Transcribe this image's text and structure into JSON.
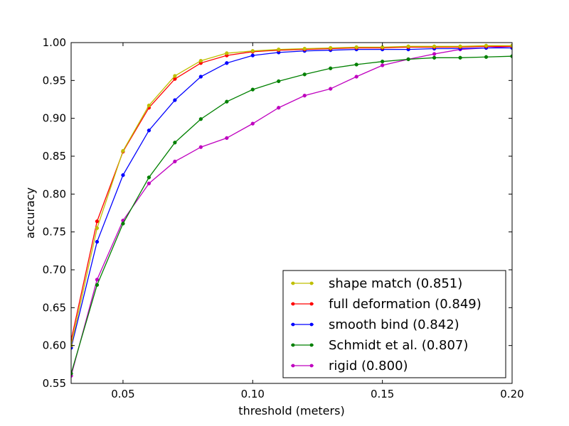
{
  "chart_data": {
    "type": "line",
    "title": "",
    "xlabel": "threshold (meters)",
    "ylabel": "accuracy",
    "xlim": [
      0.03,
      0.2
    ],
    "ylim": [
      0.55,
      1.0
    ],
    "xticks": [
      0.05,
      0.1,
      0.15,
      0.2
    ],
    "xtick_labels": [
      "0.05",
      "0.10",
      "0.15",
      "0.20"
    ],
    "yticks": [
      0.55,
      0.6,
      0.65,
      0.7,
      0.75,
      0.8,
      0.85,
      0.9,
      0.95,
      1.0
    ],
    "ytick_labels": [
      "0.55",
      "0.60",
      "0.65",
      "0.70",
      "0.75",
      "0.80",
      "0.85",
      "0.90",
      "0.95",
      "1.00"
    ],
    "grid": false,
    "legend_position": "bottom-right",
    "x": [
      0.03,
      0.04,
      0.05,
      0.06,
      0.07,
      0.08,
      0.09,
      0.1,
      0.11,
      0.12,
      0.13,
      0.14,
      0.15,
      0.16,
      0.17,
      0.18,
      0.19,
      0.2
    ],
    "series": [
      {
        "name": "shape match (0.851)",
        "color": "#bfbf00",
        "values": [
          0.6,
          0.755,
          0.857,
          0.917,
          0.956,
          0.976,
          0.986,
          0.989,
          0.991,
          0.992,
          0.993,
          0.994,
          0.994,
          0.995,
          0.995,
          0.995,
          0.996,
          0.996
        ]
      },
      {
        "name": "full deformation (0.849)",
        "color": "#ff0000",
        "values": [
          0.607,
          0.764,
          0.856,
          0.914,
          0.952,
          0.973,
          0.983,
          0.988,
          0.99,
          0.991,
          0.992,
          0.993,
          0.993,
          0.994,
          0.994,
          0.994,
          0.995,
          0.995
        ]
      },
      {
        "name": "smooth bind (0.842)",
        "color": "#0000ff",
        "values": [
          0.597,
          0.737,
          0.825,
          0.884,
          0.924,
          0.955,
          0.973,
          0.983,
          0.987,
          0.989,
          0.99,
          0.991,
          0.991,
          0.991,
          0.992,
          0.992,
          0.993,
          0.993
        ]
      },
      {
        "name": "Schmidt et al. (0.807)",
        "color": "#008000",
        "values": [
          0.563,
          0.68,
          0.761,
          0.822,
          0.868,
          0.899,
          0.922,
          0.938,
          0.949,
          0.958,
          0.966,
          0.971,
          0.975,
          0.978,
          0.98,
          0.98,
          0.981,
          0.982
        ]
      },
      {
        "name": "rigid (0.800)",
        "color": "#bf00bf",
        "values": [
          0.56,
          0.687,
          0.765,
          0.814,
          0.843,
          0.862,
          0.874,
          0.893,
          0.914,
          0.93,
          0.939,
          0.955,
          0.97,
          0.978,
          0.985,
          0.991,
          0.993,
          0.995
        ]
      }
    ]
  }
}
